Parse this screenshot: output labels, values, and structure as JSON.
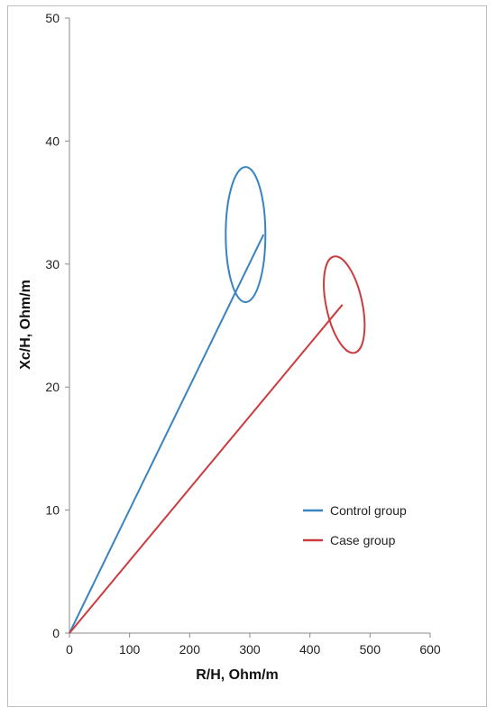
{
  "chart_data": {
    "type": "line",
    "title": "",
    "xlabel": "R/H, Ohm/m",
    "ylabel": "Xc/H, Ohm/m",
    "xlim": [
      0,
      600
    ],
    "ylim": [
      0,
      50
    ],
    "x_ticks": [
      "0",
      "100",
      "200",
      "300",
      "400",
      "500",
      "600"
    ],
    "y_ticks": [
      "0",
      "10",
      "20",
      "30",
      "40",
      "50"
    ],
    "grid": false,
    "legend_position": "lower-right",
    "series": [
      {
        "name": "Control group",
        "color": "#3a83c1",
        "x": [
          0,
          323
        ],
        "y": [
          0,
          32.4
        ],
        "ellipse": {
          "cx": 293,
          "cy": 32.4,
          "rx": 33,
          "ry": 5.5,
          "angle_deg": 60
        }
      },
      {
        "name": "Case group",
        "color": "#cc3b3d",
        "x": [
          0,
          454
        ],
        "y": [
          0,
          26.7
        ],
        "ellipse": {
          "cx": 457,
          "cy": 26.7,
          "rx": 30,
          "ry": 4,
          "angle_deg": 78
        }
      }
    ]
  }
}
